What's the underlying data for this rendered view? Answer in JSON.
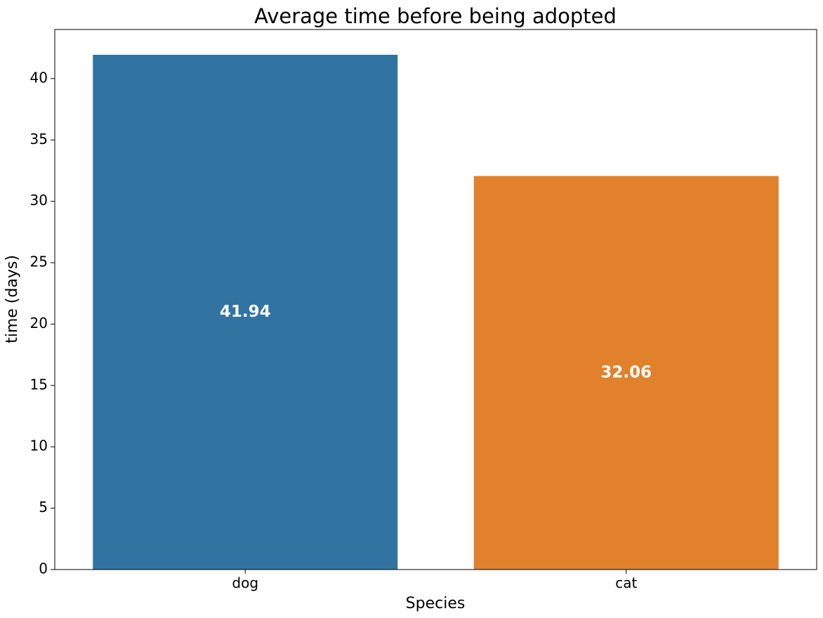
{
  "chart_data": {
    "type": "bar",
    "title": "Average time before being adopted",
    "xlabel": "Species",
    "ylabel": "time (days)",
    "categories": [
      "dog",
      "cat"
    ],
    "values": [
      41.94,
      32.06
    ],
    "data_labels": [
      "41.94",
      "32.06"
    ],
    "colors": [
      "#3274a1",
      "#e1812c"
    ],
    "ylim": [
      0,
      44
    ],
    "yticks": [
      0,
      5,
      10,
      15,
      20,
      25,
      30,
      35,
      40
    ],
    "ytick_labels": [
      "0",
      "5",
      "10",
      "15",
      "20",
      "25",
      "30",
      "35",
      "40"
    ],
    "grid": false,
    "legend": "none"
  }
}
